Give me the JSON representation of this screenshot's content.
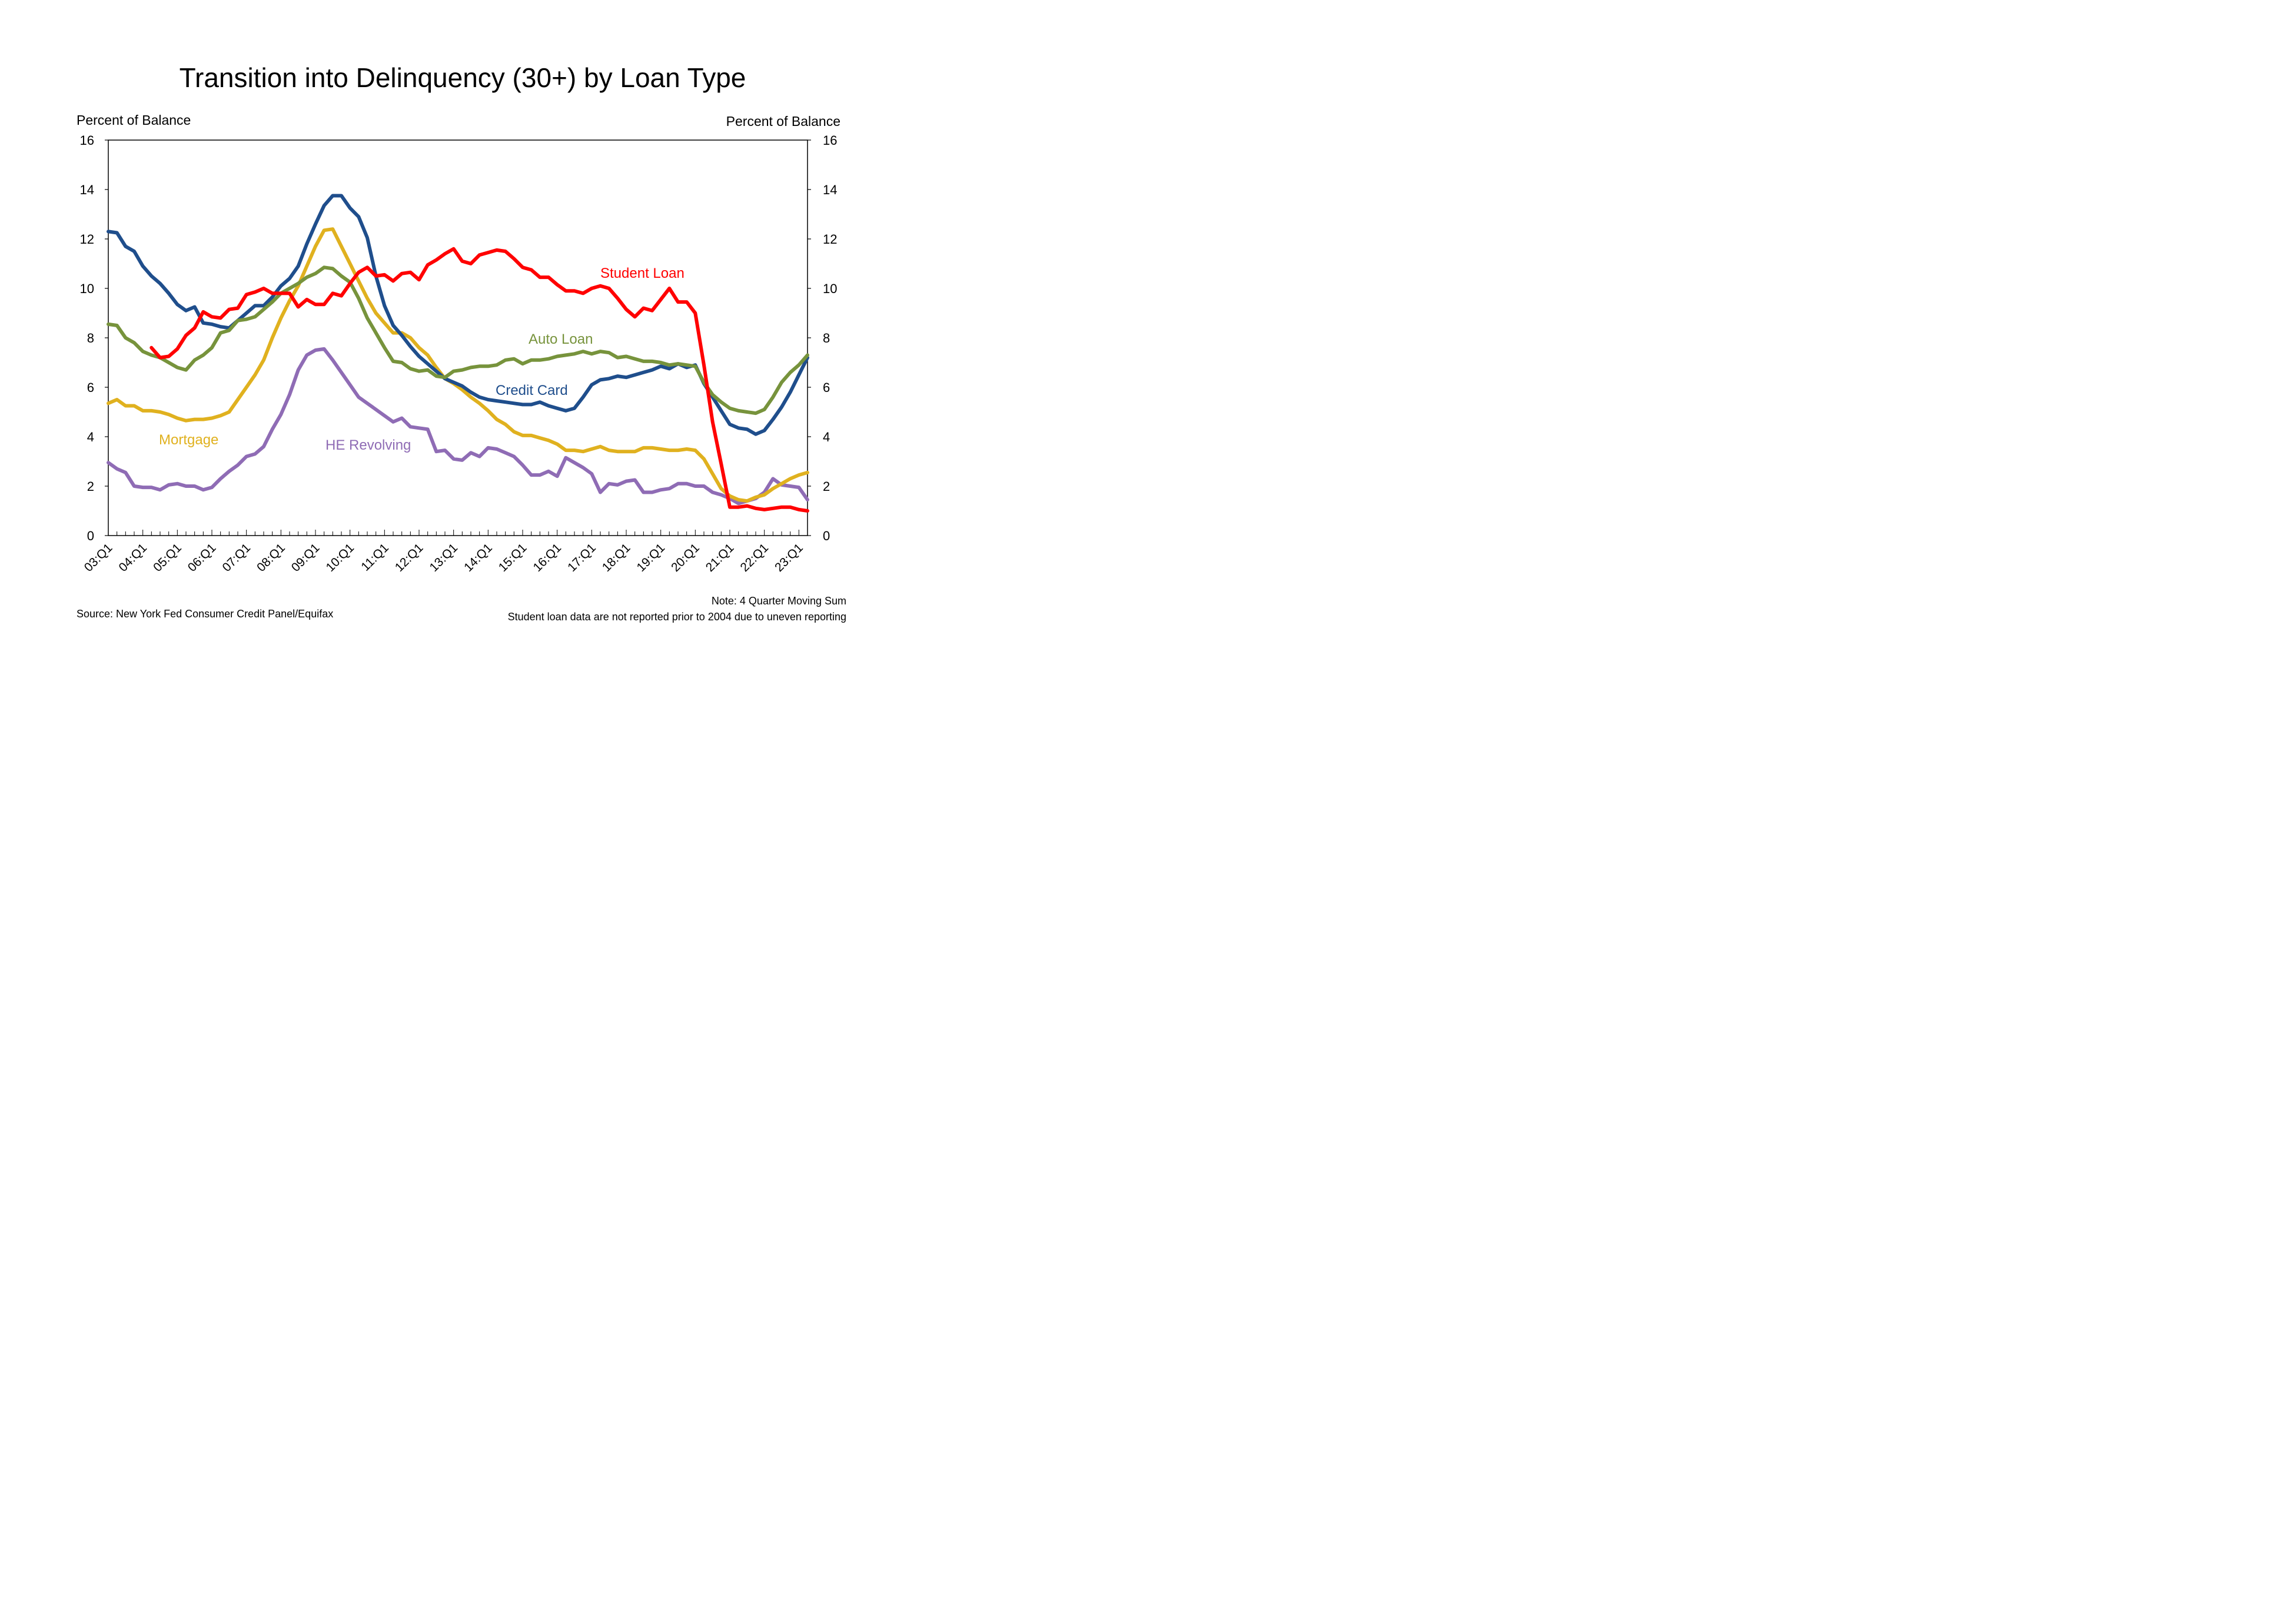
{
  "chart_data": {
    "type": "line",
    "title": "Transition into Delinquency (30+) by Loan Type",
    "ylabel_left": "Percent of Balance",
    "ylabel_right": "Percent of Balance",
    "ylim": [
      0,
      16
    ],
    "yticks": [
      0,
      2,
      4,
      6,
      8,
      10,
      12,
      14,
      16
    ],
    "xtick_labels": [
      "03:Q1",
      "04:Q1",
      "05:Q1",
      "06:Q1",
      "07:Q1",
      "08:Q1",
      "09:Q1",
      "10:Q1",
      "11:Q1",
      "12:Q1",
      "13:Q1",
      "14:Q1",
      "15:Q1",
      "16:Q1",
      "17:Q1",
      "18:Q1",
      "19:Q1",
      "20:Q1",
      "21:Q1",
      "22:Q1",
      "23:Q1"
    ],
    "x_start": "2003:Q1",
    "x_end": "2023:Q2",
    "x_interval": "quarter",
    "grid": false,
    "series": [
      {
        "name": "Credit Card",
        "color": "#1F4E8C",
        "x": [
          "2003:Q1",
          "2003:Q2",
          "2003:Q3",
          "2003:Q4",
          "2004:Q1",
          "2004:Q2",
          "2004:Q3",
          "2004:Q4",
          "2005:Q1",
          "2005:Q2",
          "2005:Q3",
          "2005:Q4",
          "2006:Q1",
          "2006:Q2",
          "2006:Q3",
          "2006:Q4",
          "2007:Q1",
          "2007:Q2",
          "2007:Q3",
          "2007:Q4",
          "2008:Q1",
          "2008:Q2",
          "2008:Q3",
          "2008:Q4",
          "2009:Q1",
          "2009:Q2",
          "2009:Q3",
          "2009:Q4",
          "2010:Q1",
          "2010:Q2",
          "2010:Q3",
          "2010:Q4",
          "2011:Q1",
          "2011:Q2",
          "2011:Q3",
          "2011:Q4",
          "2012:Q1",
          "2012:Q2",
          "2012:Q3",
          "2012:Q4",
          "2013:Q1",
          "2013:Q2",
          "2013:Q3",
          "2013:Q4",
          "2014:Q1",
          "2014:Q2",
          "2014:Q3",
          "2014:Q4",
          "2015:Q1",
          "2015:Q2",
          "2015:Q3",
          "2015:Q4",
          "2016:Q1",
          "2016:Q2",
          "2016:Q3",
          "2016:Q4",
          "2017:Q1",
          "2017:Q2",
          "2017:Q3",
          "2017:Q4",
          "2018:Q1",
          "2018:Q2",
          "2018:Q3",
          "2018:Q4",
          "2019:Q1",
          "2019:Q2",
          "2019:Q3",
          "2019:Q4",
          "2020:Q1",
          "2020:Q2",
          "2020:Q3",
          "2020:Q4",
          "2021:Q1",
          "2021:Q2",
          "2021:Q3",
          "2021:Q4",
          "2022:Q1",
          "2022:Q2",
          "2022:Q3",
          "2022:Q4",
          "2023:Q1",
          "2023:Q2"
        ],
        "values": [
          12.3,
          12.25,
          11.7,
          11.5,
          10.9,
          10.5,
          10.2,
          9.8,
          9.35,
          9.1,
          9.25,
          8.6,
          8.55,
          8.45,
          8.4,
          8.7,
          9.0,
          9.3,
          9.3,
          9.65,
          10.1,
          10.4,
          10.9,
          11.8,
          12.6,
          13.35,
          13.75,
          13.75,
          13.25,
          12.9,
          12.05,
          10.5,
          9.3,
          8.5,
          8.1,
          7.65,
          7.25,
          6.95,
          6.65,
          6.35,
          6.2,
          6.05,
          5.8,
          5.6,
          5.5,
          5.45,
          5.4,
          5.35,
          5.3,
          5.3,
          5.4,
          5.25,
          5.15,
          5.05,
          5.15,
          5.6,
          6.1,
          6.3,
          6.35,
          6.45,
          6.4,
          6.5,
          6.6,
          6.7,
          6.85,
          6.75,
          6.95,
          6.8,
          6.9,
          6.15,
          5.6,
          5.05,
          4.5,
          4.35,
          4.3,
          4.1,
          4.25,
          4.7,
          5.2,
          5.8,
          6.5,
          7.2
        ]
      },
      {
        "name": "Auto Loan",
        "color": "#77933C",
        "x": [
          "2003:Q1",
          "2003:Q2",
          "2003:Q3",
          "2003:Q4",
          "2004:Q1",
          "2004:Q2",
          "2004:Q3",
          "2004:Q4",
          "2005:Q1",
          "2005:Q2",
          "2005:Q3",
          "2005:Q4",
          "2006:Q1",
          "2006:Q2",
          "2006:Q3",
          "2006:Q4",
          "2007:Q1",
          "2007:Q2",
          "2007:Q3",
          "2007:Q4",
          "2008:Q1",
          "2008:Q2",
          "2008:Q3",
          "2008:Q4",
          "2009:Q1",
          "2009:Q2",
          "2009:Q3",
          "2009:Q4",
          "2010:Q1",
          "2010:Q2",
          "2010:Q3",
          "2010:Q4",
          "2011:Q1",
          "2011:Q2",
          "2011:Q3",
          "2011:Q4",
          "2012:Q1",
          "2012:Q2",
          "2012:Q3",
          "2012:Q4",
          "2013:Q1",
          "2013:Q2",
          "2013:Q3",
          "2013:Q4",
          "2014:Q1",
          "2014:Q2",
          "2014:Q3",
          "2014:Q4",
          "2015:Q1",
          "2015:Q2",
          "2015:Q3",
          "2015:Q4",
          "2016:Q1",
          "2016:Q2",
          "2016:Q3",
          "2016:Q4",
          "2017:Q1",
          "2017:Q2",
          "2017:Q3",
          "2017:Q4",
          "2018:Q1",
          "2018:Q2",
          "2018:Q3",
          "2018:Q4",
          "2019:Q1",
          "2019:Q2",
          "2019:Q3",
          "2019:Q4",
          "2020:Q1",
          "2020:Q2",
          "2020:Q3",
          "2020:Q4",
          "2021:Q1",
          "2021:Q2",
          "2021:Q3",
          "2021:Q4",
          "2022:Q1",
          "2022:Q2",
          "2022:Q3",
          "2022:Q4",
          "2023:Q1",
          "2023:Q2"
        ],
        "values": [
          8.55,
          8.5,
          8.0,
          7.8,
          7.45,
          7.3,
          7.2,
          7.0,
          6.8,
          6.7,
          7.1,
          7.3,
          7.6,
          8.2,
          8.3,
          8.7,
          8.75,
          8.85,
          9.15,
          9.45,
          9.8,
          10.0,
          10.2,
          10.45,
          10.6,
          10.85,
          10.8,
          10.5,
          10.25,
          9.6,
          8.8,
          8.2,
          7.6,
          7.05,
          7.0,
          6.75,
          6.65,
          6.7,
          6.45,
          6.4,
          6.65,
          6.7,
          6.8,
          6.85,
          6.85,
          6.9,
          7.1,
          7.15,
          6.95,
          7.1,
          7.1,
          7.15,
          7.25,
          7.3,
          7.35,
          7.45,
          7.35,
          7.45,
          7.4,
          7.2,
          7.25,
          7.15,
          7.05,
          7.05,
          7.0,
          6.9,
          6.95,
          6.9,
          6.85,
          6.2,
          5.7,
          5.4,
          5.15,
          5.05,
          5.0,
          4.95,
          5.1,
          5.6,
          6.2,
          6.6,
          6.9,
          7.3
        ]
      },
      {
        "name": "Student Loan",
        "color": "#FF0000",
        "x": [
          "2004:Q2",
          "2004:Q3",
          "2004:Q4",
          "2005:Q1",
          "2005:Q2",
          "2005:Q3",
          "2005:Q4",
          "2006:Q1",
          "2006:Q2",
          "2006:Q3",
          "2006:Q4",
          "2007:Q1",
          "2007:Q2",
          "2007:Q3",
          "2007:Q4",
          "2008:Q1",
          "2008:Q2",
          "2008:Q3",
          "2008:Q4",
          "2009:Q1",
          "2009:Q2",
          "2009:Q3",
          "2009:Q4",
          "2010:Q1",
          "2010:Q2",
          "2010:Q3",
          "2010:Q4",
          "2011:Q1",
          "2011:Q2",
          "2011:Q3",
          "2011:Q4",
          "2012:Q1",
          "2012:Q2",
          "2012:Q3",
          "2012:Q4",
          "2013:Q1",
          "2013:Q2",
          "2013:Q3",
          "2013:Q4",
          "2014:Q1",
          "2014:Q2",
          "2014:Q3",
          "2014:Q4",
          "2015:Q1",
          "2015:Q2",
          "2015:Q3",
          "2015:Q4",
          "2016:Q1",
          "2016:Q2",
          "2016:Q3",
          "2016:Q4",
          "2017:Q1",
          "2017:Q2",
          "2017:Q3",
          "2017:Q4",
          "2018:Q1",
          "2018:Q2",
          "2018:Q3",
          "2018:Q4",
          "2019:Q1",
          "2019:Q2",
          "2019:Q3",
          "2019:Q4",
          "2020:Q1",
          "2020:Q2",
          "2020:Q3",
          "2020:Q4",
          "2021:Q1",
          "2021:Q2",
          "2021:Q3",
          "2021:Q4",
          "2022:Q1",
          "2022:Q2",
          "2022:Q3",
          "2022:Q4",
          "2023:Q1",
          "2023:Q2"
        ],
        "values": [
          7.6,
          7.2,
          7.25,
          7.55,
          8.1,
          8.4,
          9.05,
          8.85,
          8.8,
          9.15,
          9.2,
          9.75,
          9.85,
          10.0,
          9.8,
          9.8,
          9.8,
          9.25,
          9.55,
          9.35,
          9.35,
          9.8,
          9.7,
          10.2,
          10.65,
          10.85,
          10.5,
          10.55,
          10.3,
          10.6,
          10.65,
          10.35,
          10.95,
          11.15,
          11.4,
          11.6,
          11.1,
          11.0,
          11.35,
          11.45,
          11.55,
          11.5,
          11.2,
          10.85,
          10.75,
          10.45,
          10.45,
          10.15,
          9.9,
          9.9,
          9.8,
          10.0,
          10.1,
          10.0,
          9.6,
          9.15,
          8.85,
          9.2,
          9.1,
          9.55,
          10.0,
          9.45,
          9.45,
          9.0,
          6.9,
          4.6,
          2.9,
          1.15,
          1.15,
          1.2,
          1.1,
          1.05,
          1.1,
          1.15,
          1.15,
          1.05,
          1.0
        ]
      },
      {
        "name": "Mortgage",
        "color": "#E0B11F",
        "x": [
          "2003:Q1",
          "2003:Q2",
          "2003:Q3",
          "2003:Q4",
          "2004:Q1",
          "2004:Q2",
          "2004:Q3",
          "2004:Q4",
          "2005:Q1",
          "2005:Q2",
          "2005:Q3",
          "2005:Q4",
          "2006:Q1",
          "2006:Q2",
          "2006:Q3",
          "2006:Q4",
          "2007:Q1",
          "2007:Q2",
          "2007:Q3",
          "2007:Q4",
          "2008:Q1",
          "2008:Q2",
          "2008:Q3",
          "2008:Q4",
          "2009:Q1",
          "2009:Q2",
          "2009:Q3",
          "2009:Q4",
          "2010:Q1",
          "2010:Q2",
          "2010:Q3",
          "2010:Q4",
          "2011:Q1",
          "2011:Q2",
          "2011:Q3",
          "2011:Q4",
          "2012:Q1",
          "2012:Q2",
          "2012:Q3",
          "2012:Q4",
          "2013:Q1",
          "2013:Q2",
          "2013:Q3",
          "2013:Q4",
          "2014:Q1",
          "2014:Q2",
          "2014:Q3",
          "2014:Q4",
          "2015:Q1",
          "2015:Q2",
          "2015:Q3",
          "2015:Q4",
          "2016:Q1",
          "2016:Q2",
          "2016:Q3",
          "2016:Q4",
          "2017:Q1",
          "2017:Q2",
          "2017:Q3",
          "2017:Q4",
          "2018:Q1",
          "2018:Q2",
          "2018:Q3",
          "2018:Q4",
          "2019:Q1",
          "2019:Q2",
          "2019:Q3",
          "2019:Q4",
          "2020:Q1",
          "2020:Q2",
          "2020:Q3",
          "2020:Q4",
          "2021:Q1",
          "2021:Q2",
          "2021:Q3",
          "2021:Q4",
          "2022:Q1",
          "2022:Q2",
          "2022:Q3",
          "2022:Q4",
          "2023:Q1",
          "2023:Q2"
        ],
        "values": [
          5.35,
          5.5,
          5.25,
          5.25,
          5.05,
          5.05,
          5.0,
          4.9,
          4.75,
          4.65,
          4.7,
          4.7,
          4.75,
          4.85,
          5.0,
          5.5,
          6.0,
          6.5,
          7.1,
          8.0,
          8.8,
          9.5,
          10.1,
          10.9,
          11.7,
          12.35,
          12.4,
          11.7,
          11.0,
          10.3,
          9.6,
          9.0,
          8.6,
          8.2,
          8.2,
          8.0,
          7.6,
          7.3,
          6.8,
          6.35,
          6.15,
          5.9,
          5.6,
          5.35,
          5.05,
          4.7,
          4.5,
          4.2,
          4.05,
          4.05,
          3.95,
          3.85,
          3.7,
          3.45,
          3.45,
          3.4,
          3.5,
          3.6,
          3.45,
          3.4,
          3.4,
          3.4,
          3.55,
          3.55,
          3.5,
          3.45,
          3.45,
          3.5,
          3.45,
          3.1,
          2.5,
          1.9,
          1.6,
          1.45,
          1.4,
          1.55,
          1.65,
          1.9,
          2.1,
          2.3,
          2.45,
          2.55
        ]
      },
      {
        "name": "HE Revolving",
        "color": "#8F6CB5",
        "x": [
          "2003:Q1",
          "2003:Q2",
          "2003:Q3",
          "2003:Q4",
          "2004:Q1",
          "2004:Q2",
          "2004:Q3",
          "2004:Q4",
          "2005:Q1",
          "2005:Q2",
          "2005:Q3",
          "2005:Q4",
          "2006:Q1",
          "2006:Q2",
          "2006:Q3",
          "2006:Q4",
          "2007:Q1",
          "2007:Q2",
          "2007:Q3",
          "2007:Q4",
          "2008:Q1",
          "2008:Q2",
          "2008:Q3",
          "2008:Q4",
          "2009:Q1",
          "2009:Q2",
          "2009:Q3",
          "2009:Q4",
          "2010:Q1",
          "2010:Q2",
          "2010:Q3",
          "2010:Q4",
          "2011:Q1",
          "2011:Q2",
          "2011:Q3",
          "2011:Q4",
          "2012:Q1",
          "2012:Q2",
          "2012:Q3",
          "2012:Q4",
          "2013:Q1",
          "2013:Q2",
          "2013:Q3",
          "2013:Q4",
          "2014:Q1",
          "2014:Q2",
          "2014:Q3",
          "2014:Q4",
          "2015:Q1",
          "2015:Q2",
          "2015:Q3",
          "2015:Q4",
          "2016:Q1",
          "2016:Q2",
          "2016:Q3",
          "2016:Q4",
          "2017:Q1",
          "2017:Q2",
          "2017:Q3",
          "2017:Q4",
          "2018:Q1",
          "2018:Q2",
          "2018:Q3",
          "2018:Q4",
          "2019:Q1",
          "2019:Q2",
          "2019:Q3",
          "2019:Q4",
          "2020:Q1",
          "2020:Q2",
          "2020:Q3",
          "2020:Q4",
          "2021:Q1",
          "2021:Q2",
          "2021:Q3",
          "2021:Q4",
          "2022:Q1",
          "2022:Q2",
          "2022:Q3",
          "2022:Q4",
          "2023:Q1",
          "2023:Q2"
        ],
        "values": [
          2.95,
          2.7,
          2.55,
          2.0,
          1.95,
          1.95,
          1.85,
          2.05,
          2.1,
          2.0,
          2.0,
          1.85,
          1.95,
          2.3,
          2.6,
          2.85,
          3.2,
          3.3,
          3.6,
          4.3,
          4.9,
          5.7,
          6.7,
          7.3,
          7.5,
          7.55,
          7.1,
          6.6,
          6.1,
          5.6,
          5.35,
          5.1,
          4.85,
          4.6,
          4.75,
          4.4,
          4.35,
          4.3,
          3.4,
          3.45,
          3.1,
          3.05,
          3.35,
          3.2,
          3.55,
          3.5,
          3.35,
          3.2,
          2.85,
          2.45,
          2.45,
          2.6,
          2.4,
          3.15,
          2.95,
          2.75,
          2.5,
          1.75,
          2.1,
          2.05,
          2.2,
          2.25,
          1.75,
          1.75,
          1.85,
          1.9,
          2.1,
          2.1,
          2.0,
          2.0,
          1.75,
          1.65,
          1.5,
          1.3,
          1.4,
          1.5,
          1.75,
          2.3,
          2.05,
          2.0,
          1.95,
          1.45
        ]
      }
    ],
    "series_labels": [
      {
        "text": "Student Loan",
        "color": "#FF0000"
      },
      {
        "text": "Auto Loan",
        "color": "#77933C"
      },
      {
        "text": "Credit Card",
        "color": "#1F4E8C"
      },
      {
        "text": "Mortgage",
        "color": "#E0B11F"
      },
      {
        "text": "HE Revolving",
        "color": "#8F6CB5"
      }
    ],
    "source": "Source: New York Fed Consumer Credit Panel/Equifax",
    "notes": [
      "Note: 4 Quarter Moving Sum",
      "Student loan data are not reported prior to 2004 due to uneven reporting"
    ]
  }
}
